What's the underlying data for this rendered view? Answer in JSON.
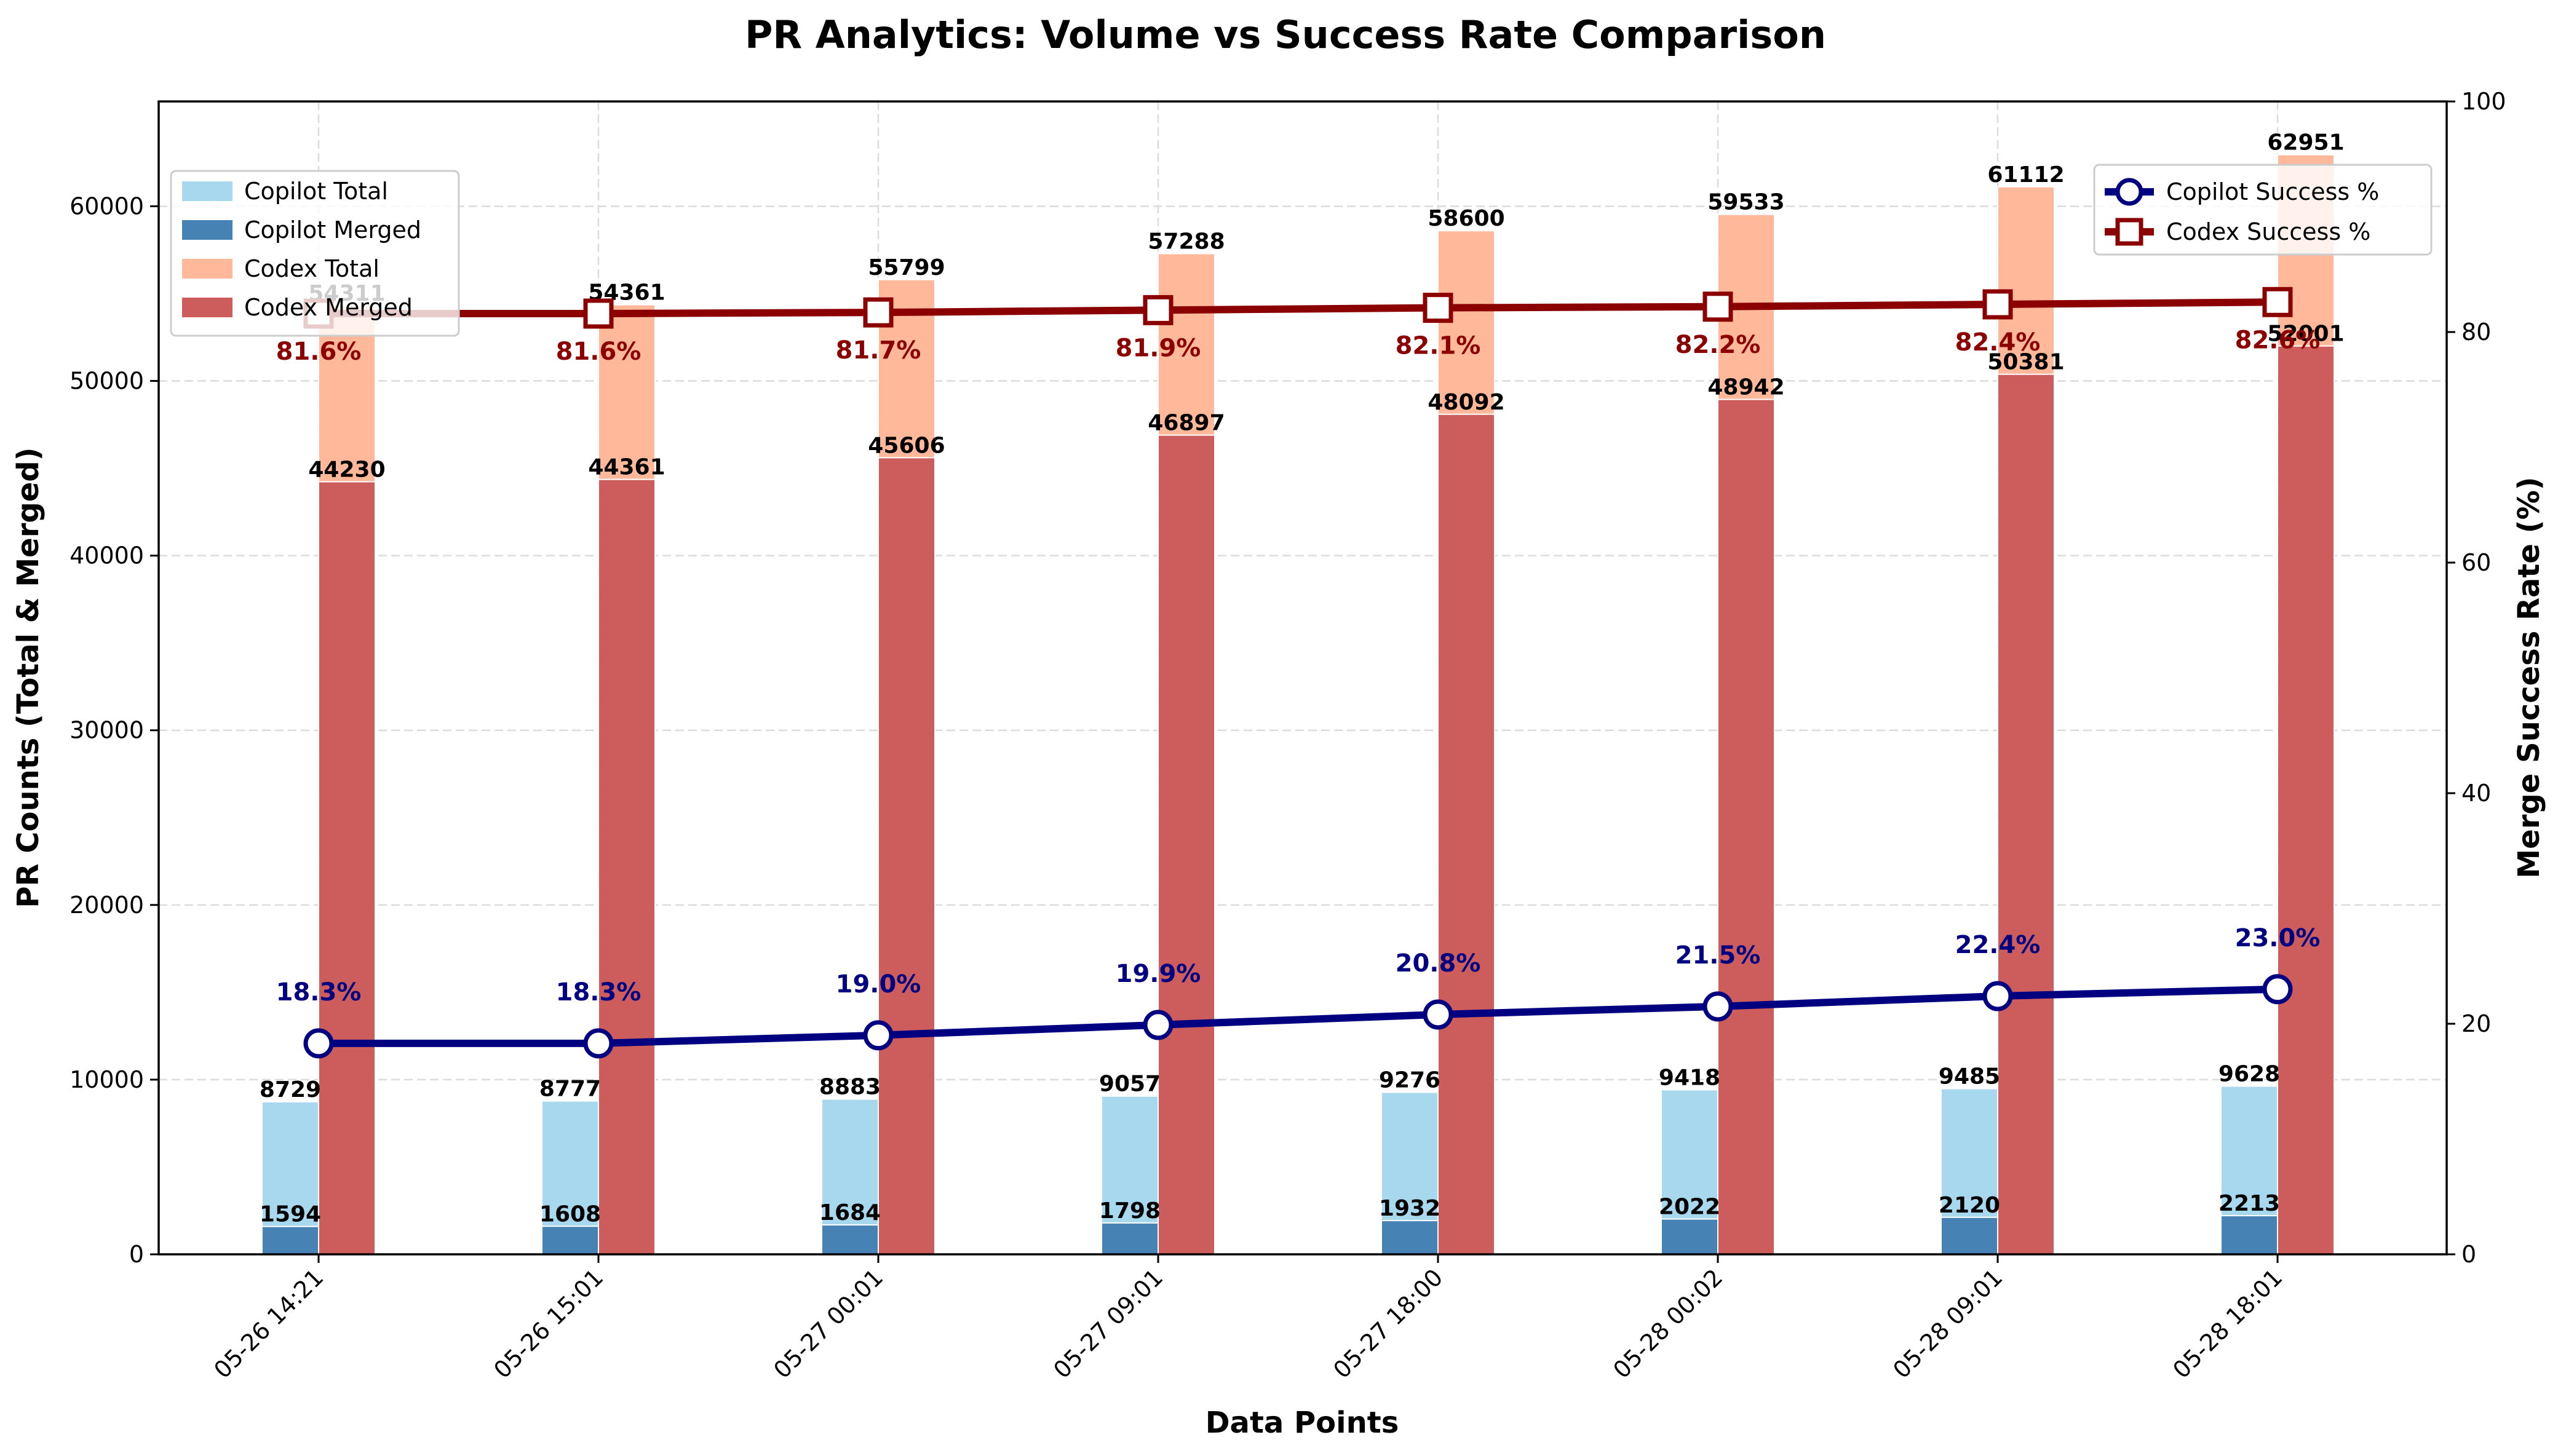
{
  "chart_data": {
    "type": "bar",
    "title": "PR Analytics: Volume vs Success Rate Comparison",
    "xlabel": "Data Points",
    "ylabel": "PR Counts (Total & Merged)",
    "ylabel_right": "Merge Success Rate (%)",
    "categories": [
      "05-26 14:21",
      "05-26 15:01",
      "05-27 00:01",
      "05-27 09:01",
      "05-27 18:00",
      "05-28 00:02",
      "05-28 09:01",
      "05-28 18:01"
    ],
    "ylim": [
      0,
      66000
    ],
    "yticks": [
      0,
      10000,
      20000,
      30000,
      40000,
      50000,
      60000
    ],
    "ylim_right": [
      0,
      100
    ],
    "yticks_right": [
      0,
      20,
      40,
      60,
      80,
      100
    ],
    "grid": true,
    "bar_series": [
      {
        "name": "Copilot Total",
        "color": "#a8d8ee",
        "offset": -1,
        "values": [
          8729,
          8777,
          8883,
          9057,
          9276,
          9418,
          9485,
          9628
        ]
      },
      {
        "name": "Copilot Merged",
        "color": "#4682b4",
        "offset": -1,
        "values": [
          1594,
          1608,
          1684,
          1798,
          1932,
          2022,
          2120,
          2213
        ]
      },
      {
        "name": "Codex Total",
        "color": "#ffb89a",
        "offset": 0,
        "values": [
          54311,
          54361,
          55799,
          57288,
          58600,
          59533,
          61112,
          62951
        ]
      },
      {
        "name": "Codex Merged",
        "color": "#cd5c5c",
        "offset": 0,
        "values": [
          44230,
          44361,
          45606,
          46897,
          48092,
          48942,
          50381,
          52001
        ]
      }
    ],
    "line_series": [
      {
        "name": "Copilot Success %",
        "color": "#000080",
        "marker": "circle",
        "values": [
          18.3,
          18.3,
          19.0,
          19.9,
          20.8,
          21.5,
          22.4,
          23.0
        ],
        "labels": [
          "18.3%",
          "18.3%",
          "19.0%",
          "19.9%",
          "20.8%",
          "21.5%",
          "22.4%",
          "23.0%"
        ]
      },
      {
        "name": "Codex Success %",
        "color": "#8b0000",
        "marker": "square",
        "values": [
          81.6,
          81.6,
          81.7,
          81.9,
          82.1,
          82.2,
          82.4,
          82.6
        ],
        "labels": [
          "81.6%",
          "81.6%",
          "81.7%",
          "81.9%",
          "82.1%",
          "82.2%",
          "82.4%",
          "82.6%"
        ]
      }
    ],
    "legend_left_position": "upper-left",
    "legend_right_position": "upper-right"
  }
}
